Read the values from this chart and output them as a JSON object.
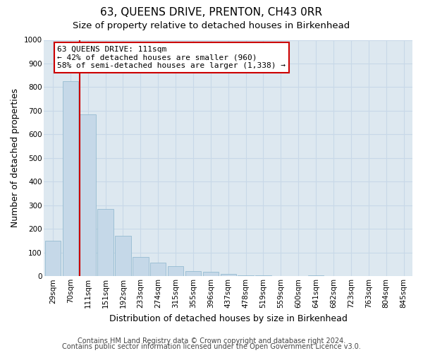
{
  "title": "63, QUEENS DRIVE, PRENTON, CH43 0RR",
  "subtitle": "Size of property relative to detached houses in Birkenhead",
  "xlabel": "Distribution of detached houses by size in Birkenhead",
  "ylabel": "Number of detached properties",
  "bar_labels": [
    "29sqm",
    "70sqm",
    "111sqm",
    "151sqm",
    "192sqm",
    "233sqm",
    "274sqm",
    "315sqm",
    "355sqm",
    "396sqm",
    "437sqm",
    "478sqm",
    "519sqm",
    "559sqm",
    "600sqm",
    "641sqm",
    "682sqm",
    "723sqm",
    "763sqm",
    "804sqm",
    "845sqm"
  ],
  "bar_values": [
    150,
    825,
    685,
    285,
    170,
    80,
    58,
    42,
    22,
    18,
    10,
    5,
    5,
    0,
    0,
    5,
    0,
    0,
    0,
    0,
    0
  ],
  "bar_color": "#c5d8e8",
  "bar_edge_color": "#8ab4cc",
  "marker_bar_index": 2,
  "marker_color": "#cc0000",
  "annotation_text": "63 QUEENS DRIVE: 111sqm\n← 42% of detached houses are smaller (960)\n58% of semi-detached houses are larger (1,338) →",
  "annotation_box_color": "#ffffff",
  "annotation_box_edge": "#cc0000",
  "ylim": [
    0,
    1000
  ],
  "yticks": [
    0,
    100,
    200,
    300,
    400,
    500,
    600,
    700,
    800,
    900,
    1000
  ],
  "grid_color": "#c8d8e8",
  "plot_bg_color": "#dde8f0",
  "footer_line1": "Contains HM Land Registry data © Crown copyright and database right 2024.",
  "footer_line2": "Contains public sector information licensed under the Open Government Licence v3.0.",
  "title_fontsize": 11,
  "subtitle_fontsize": 9.5,
  "axis_label_fontsize": 9,
  "tick_fontsize": 7.5,
  "annotation_fontsize": 8,
  "footer_fontsize": 7
}
